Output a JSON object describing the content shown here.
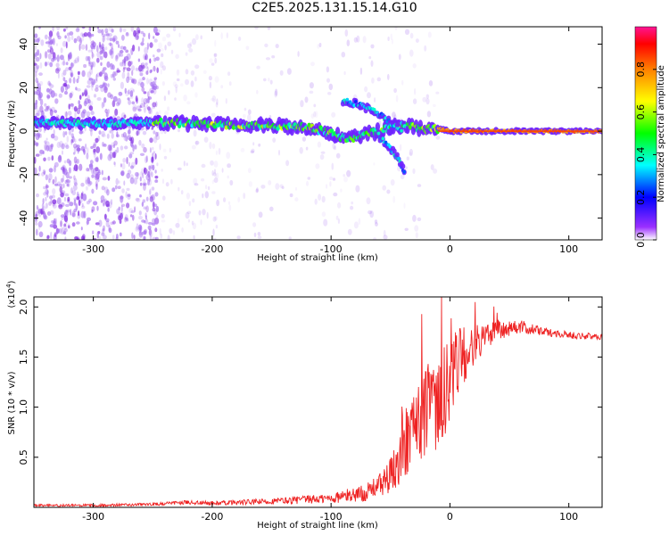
{
  "title": "C2E5.2025.131.15.14.G10",
  "chart_data": [
    {
      "type": "heatmap",
      "xlabel": "Height of straight line (km)",
      "ylabel": "Frequency (Hz)",
      "xlim": [
        -350,
        128
      ],
      "ylim": [
        -50,
        48
      ],
      "xticks": [
        -300,
        -200,
        -100,
        0,
        100
      ],
      "yticks": [
        -40,
        -20,
        0,
        20,
        40
      ],
      "xtick_labels": [
        "-300",
        "-200",
        "-100",
        "0",
        "100"
      ],
      "ytick_labels": [
        "-40",
        "-20",
        "0",
        "20",
        "40"
      ],
      "colorbar": {
        "label": "Normalized spectral amplitude",
        "range": [
          0,
          1
        ],
        "ticks": [
          0.0,
          0.2,
          0.4,
          0.6,
          0.8
        ],
        "tick_labels": [
          "0.0",
          "0.2",
          "0.4",
          "0.6",
          "0.8"
        ],
        "colormap": [
          "#ffffff",
          "#8a2be2",
          "#0000ff",
          "#00ffff",
          "#00ff00",
          "#ffff00",
          "#ff8000",
          "#ff0000",
          "#ff00c0"
        ]
      },
      "ridge": {
        "x": [
          -350,
          -300,
          -250,
          -200,
          -150,
          -120,
          -100,
          -85,
          -75,
          -60,
          -50,
          -40,
          -30,
          -20,
          -10,
          0,
          50,
          128
        ],
        "y": [
          4,
          3.5,
          4,
          3,
          2.5,
          2,
          -1,
          -4,
          -2,
          0,
          2,
          3,
          2,
          1,
          1,
          0,
          0,
          0
        ]
      },
      "branches": [
        {
          "x": [
            -90,
            -75,
            -60,
            -50,
            -40
          ],
          "y": [
            14,
            12,
            8,
            4,
            0
          ]
        },
        {
          "x": [
            -60,
            -50,
            -42,
            -38
          ],
          "y": [
            -2,
            -8,
            -14,
            -20
          ]
        }
      ]
    },
    {
      "type": "line",
      "xlabel": "Height of straight line (km)",
      "ylabel": "SNR (10 * v/v)",
      "y_multiplier": "(x10",
      "y_multiplier_exp": "4",
      "xlim": [
        -350,
        128
      ],
      "ylim": [
        0,
        2.1
      ],
      "xticks": [
        -300,
        -200,
        -100,
        0,
        100
      ],
      "yticks": [
        0.5,
        1.0,
        1.5,
        2.0
      ],
      "xtick_labels": [
        "-300",
        "-200",
        "-100",
        "0",
        "100"
      ],
      "ytick_labels": [
        "0.5",
        "1.0",
        "1.5",
        "2.0"
      ],
      "color": "#ee2222",
      "trend": {
        "x": [
          -350,
          -300,
          -250,
          -220,
          -200,
          -150,
          -100,
          -70,
          -50,
          -40,
          -30,
          -20,
          -10,
          0,
          10,
          20,
          30,
          40,
          60,
          80,
          100,
          128
        ],
        "y": [
          0.02,
          0.02,
          0.03,
          0.05,
          0.04,
          0.06,
          0.09,
          0.15,
          0.3,
          0.5,
          0.8,
          0.95,
          0.95,
          1.3,
          1.5,
          1.6,
          1.72,
          1.78,
          1.8,
          1.75,
          1.72,
          1.7
        ]
      },
      "noise": {
        "x": [
          -350,
          -250,
          -150,
          -100,
          -60,
          -40,
          -20,
          -5,
          20,
          50,
          80,
          128
        ],
        "y": [
          0.01,
          0.015,
          0.03,
          0.05,
          0.1,
          0.3,
          0.45,
          0.5,
          0.2,
          0.08,
          0.04,
          0.03
        ]
      }
    }
  ]
}
